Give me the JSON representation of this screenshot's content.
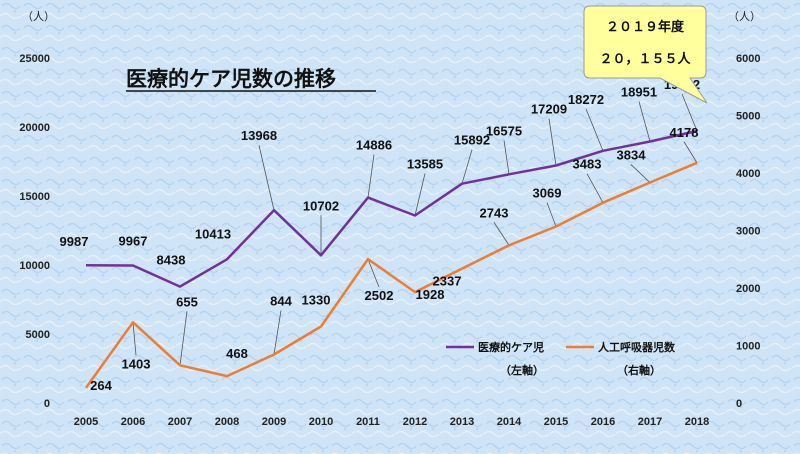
{
  "chart_data": {
    "type": "line",
    "title": "医療的ケア児数の推移",
    "left_unit": "（人）",
    "right_unit": "（人）",
    "x": [
      "2005",
      "2006",
      "2007",
      "2008",
      "2009",
      "2010",
      "2011",
      "2012",
      "2013",
      "2014",
      "2015",
      "2016",
      "2017",
      "2018"
    ],
    "y_left": {
      "range": [
        0,
        25000
      ],
      "ticks": [
        0,
        5000,
        10000,
        15000,
        20000,
        25000
      ]
    },
    "y_right": {
      "range": [
        0,
        6000
      ],
      "ticks": [
        0,
        1000,
        2000,
        3000,
        4000,
        5000,
        6000
      ]
    },
    "series": [
      {
        "name": "医療的ケア児",
        "axis_label": "（左軸）",
        "axis": "left",
        "color": "#7030A0",
        "values": [
          9987,
          9967,
          8438,
          10413,
          13968,
          10702,
          14886,
          13585,
          15892,
          16575,
          17209,
          18272,
          18951,
          19712
        ]
      },
      {
        "name": "人工呼吸器児数",
        "axis_label": "（右軸）",
        "axis": "right",
        "color": "#ED7D31",
        "values": [
          264,
          1403,
          655,
          468,
          844,
          1330,
          2502,
          1928,
          2337,
          2743,
          3069,
          3483,
          3834,
          4178
        ]
      }
    ],
    "callout": {
      "line1": "２０１９年度",
      "line2": "２０，１５５人"
    },
    "grid": false,
    "legend_position": "right-middle"
  }
}
